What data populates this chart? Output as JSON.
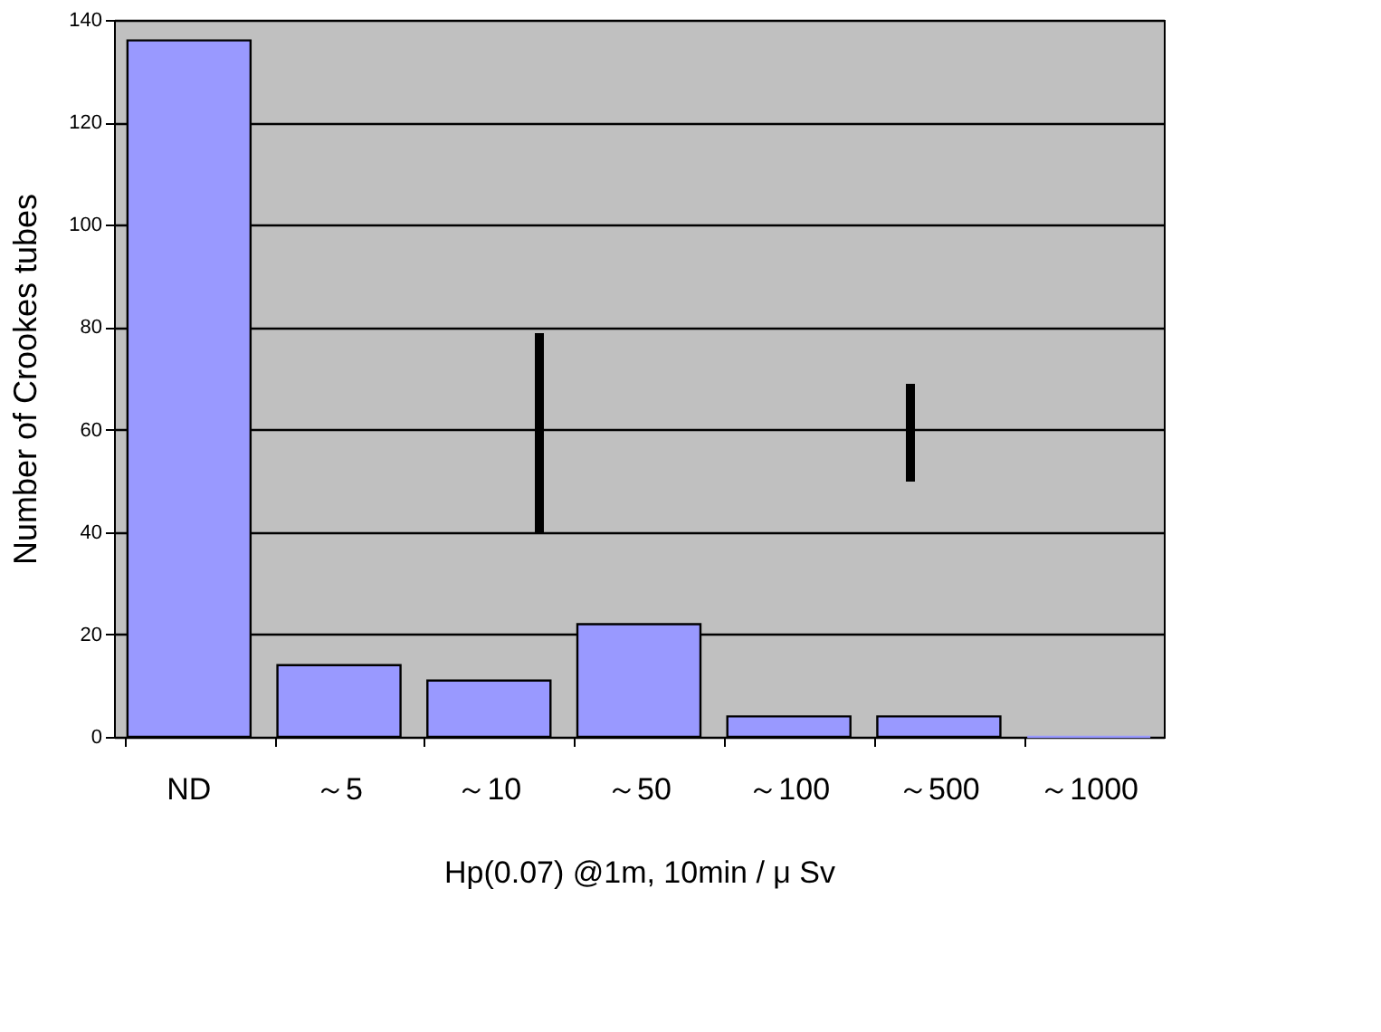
{
  "chart_data": {
    "type": "bar",
    "xlabel": "Hp(0.07) @1m, 10min / μ Sv",
    "ylabel": "Number of Crookes tubes",
    "categories": [
      "ND",
      "～5",
      "～10",
      "～50",
      "～100",
      "～500",
      "～1000"
    ],
    "values": [
      136,
      14,
      11,
      22,
      4,
      4,
      0
    ],
    "color": "#9999ff",
    "ylim": [
      0,
      140
    ],
    "yticks": [
      0,
      20,
      40,
      60,
      80,
      100,
      120,
      140
    ],
    "grid": "y"
  }
}
